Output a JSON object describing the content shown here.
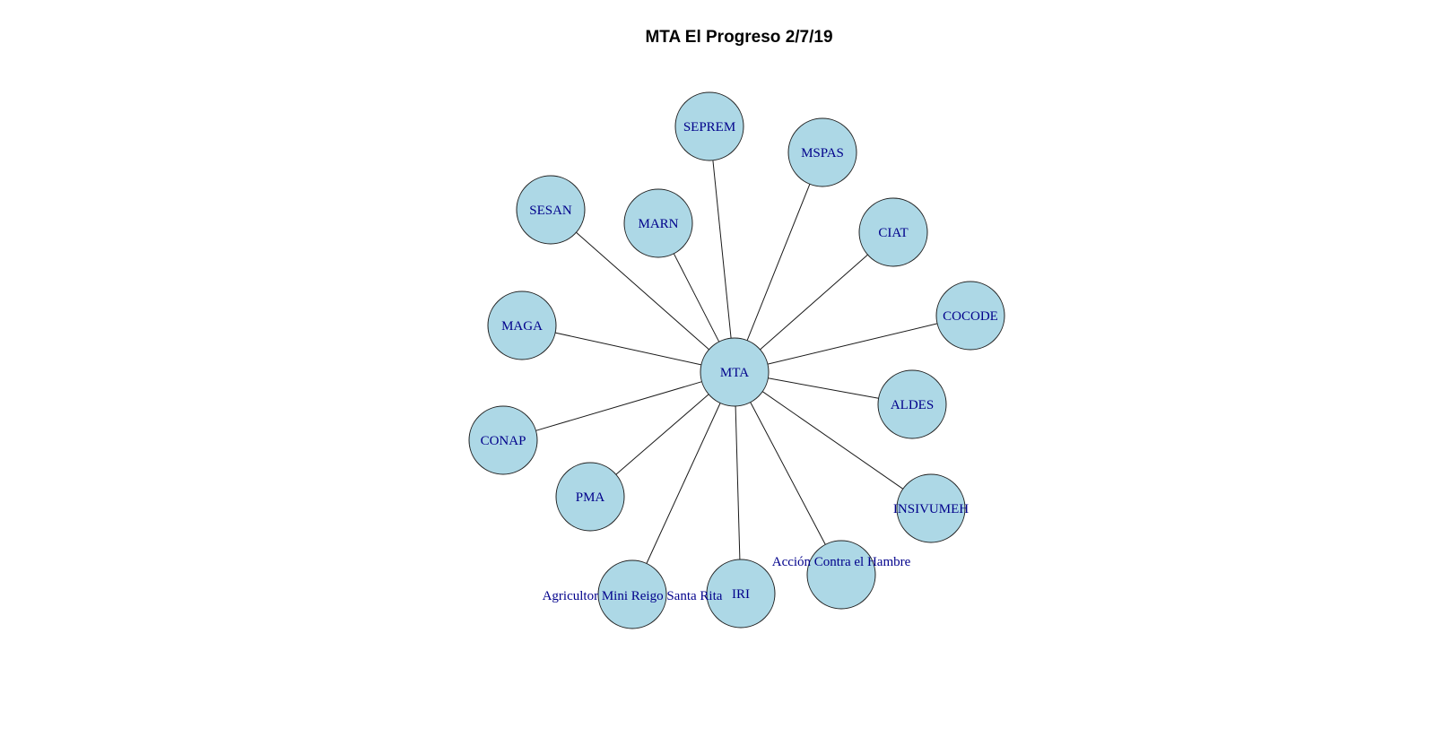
{
  "title": "MTA El Progreso 2/7/19",
  "colors": {
    "node_fill": "#add8e6",
    "label": "#00008b",
    "edge": "#1a1a1a"
  },
  "center": "MTA",
  "nodes": [
    "MTA",
    "SEPREM",
    "MSPAS",
    "CIAT",
    "COCODE",
    "ALDES",
    "INSIVUMEH",
    "Acción Contra el Hambre",
    "IRI",
    "Agricultor Mini Reigo Santa Rita",
    "PMA",
    "CONAP",
    "MAGA",
    "SESAN",
    "MARN"
  ],
  "edges": [
    [
      "MTA",
      "SEPREM"
    ],
    [
      "MTA",
      "MSPAS"
    ],
    [
      "MTA",
      "CIAT"
    ],
    [
      "MTA",
      "COCODE"
    ],
    [
      "MTA",
      "ALDES"
    ],
    [
      "MTA",
      "INSIVUMEH"
    ],
    [
      "MTA",
      "Acción Contra el Hambre"
    ],
    [
      "MTA",
      "IRI"
    ],
    [
      "MTA",
      "Agricultor Mini Reigo Santa Rita"
    ],
    [
      "MTA",
      "PMA"
    ],
    [
      "MTA",
      "CONAP"
    ],
    [
      "MTA",
      "MAGA"
    ],
    [
      "MTA",
      "SESAN"
    ],
    [
      "MTA",
      "MARN"
    ]
  ]
}
